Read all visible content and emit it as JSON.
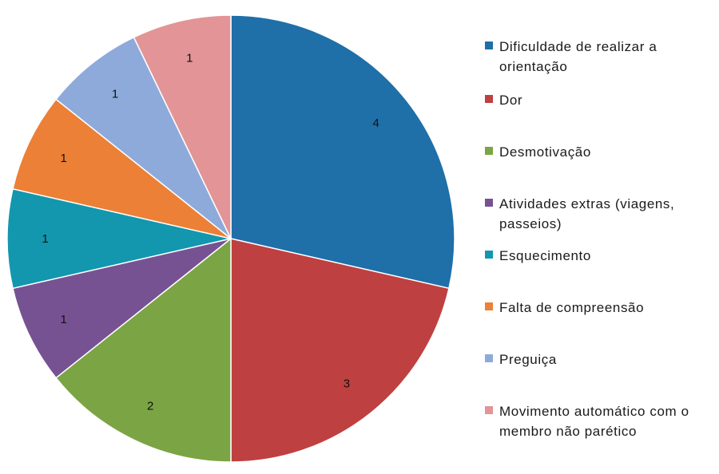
{
  "chart_data": {
    "type": "pie",
    "title": "",
    "slices": [
      {
        "label": "Dificuldade de realizar a orientação",
        "value": 4,
        "color": "#1F6FA8"
      },
      {
        "label": "Dor",
        "value": 3,
        "color": "#BF4040"
      },
      {
        "label": "Desmotivação",
        "value": 2,
        "color": "#7BA444"
      },
      {
        "label": "Atividades extras (viagens, passeios)",
        "value": 1,
        "color": "#775293"
      },
      {
        "label": "Esquecimento",
        "value": 1,
        "color": "#1297AE"
      },
      {
        "label": "Falta de compreensão",
        "value": 1,
        "color": "#EB8036"
      },
      {
        "label": "Preguiça",
        "value": 1,
        "color": "#8EAADB"
      },
      {
        "label": "Movimento automático com o membro não parético",
        "value": 1,
        "color": "#E39496"
      }
    ],
    "legend_position": "right"
  }
}
